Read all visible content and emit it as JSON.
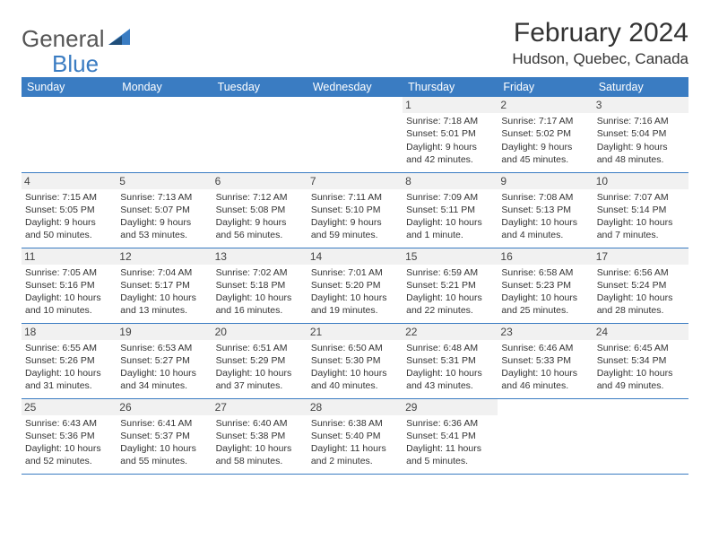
{
  "logo": {
    "general": "General",
    "blue": "Blue",
    "accent_color": "#3a7cc2",
    "text_color": "#555555"
  },
  "title": "February 2024",
  "location": "Hudson, Quebec, Canada",
  "header_bg": "#3a7cc2",
  "header_fg": "#ffffff",
  "border_color": "#3a7cc2",
  "daynum_bg": "#f1f1f1",
  "weekdays": [
    "Sunday",
    "Monday",
    "Tuesday",
    "Wednesday",
    "Thursday",
    "Friday",
    "Saturday"
  ],
  "weeks": [
    [
      null,
      null,
      null,
      null,
      {
        "day": "1",
        "sunrise": "Sunrise: 7:18 AM",
        "sunset": "Sunset: 5:01 PM",
        "daylight": "Daylight: 9 hours and 42 minutes."
      },
      {
        "day": "2",
        "sunrise": "Sunrise: 7:17 AM",
        "sunset": "Sunset: 5:02 PM",
        "daylight": "Daylight: 9 hours and 45 minutes."
      },
      {
        "day": "3",
        "sunrise": "Sunrise: 7:16 AM",
        "sunset": "Sunset: 5:04 PM",
        "daylight": "Daylight: 9 hours and 48 minutes."
      }
    ],
    [
      {
        "day": "4",
        "sunrise": "Sunrise: 7:15 AM",
        "sunset": "Sunset: 5:05 PM",
        "daylight": "Daylight: 9 hours and 50 minutes."
      },
      {
        "day": "5",
        "sunrise": "Sunrise: 7:13 AM",
        "sunset": "Sunset: 5:07 PM",
        "daylight": "Daylight: 9 hours and 53 minutes."
      },
      {
        "day": "6",
        "sunrise": "Sunrise: 7:12 AM",
        "sunset": "Sunset: 5:08 PM",
        "daylight": "Daylight: 9 hours and 56 minutes."
      },
      {
        "day": "7",
        "sunrise": "Sunrise: 7:11 AM",
        "sunset": "Sunset: 5:10 PM",
        "daylight": "Daylight: 9 hours and 59 minutes."
      },
      {
        "day": "8",
        "sunrise": "Sunrise: 7:09 AM",
        "sunset": "Sunset: 5:11 PM",
        "daylight": "Daylight: 10 hours and 1 minute."
      },
      {
        "day": "9",
        "sunrise": "Sunrise: 7:08 AM",
        "sunset": "Sunset: 5:13 PM",
        "daylight": "Daylight: 10 hours and 4 minutes."
      },
      {
        "day": "10",
        "sunrise": "Sunrise: 7:07 AM",
        "sunset": "Sunset: 5:14 PM",
        "daylight": "Daylight: 10 hours and 7 minutes."
      }
    ],
    [
      {
        "day": "11",
        "sunrise": "Sunrise: 7:05 AM",
        "sunset": "Sunset: 5:16 PM",
        "daylight": "Daylight: 10 hours and 10 minutes."
      },
      {
        "day": "12",
        "sunrise": "Sunrise: 7:04 AM",
        "sunset": "Sunset: 5:17 PM",
        "daylight": "Daylight: 10 hours and 13 minutes."
      },
      {
        "day": "13",
        "sunrise": "Sunrise: 7:02 AM",
        "sunset": "Sunset: 5:18 PM",
        "daylight": "Daylight: 10 hours and 16 minutes."
      },
      {
        "day": "14",
        "sunrise": "Sunrise: 7:01 AM",
        "sunset": "Sunset: 5:20 PM",
        "daylight": "Daylight: 10 hours and 19 minutes."
      },
      {
        "day": "15",
        "sunrise": "Sunrise: 6:59 AM",
        "sunset": "Sunset: 5:21 PM",
        "daylight": "Daylight: 10 hours and 22 minutes."
      },
      {
        "day": "16",
        "sunrise": "Sunrise: 6:58 AM",
        "sunset": "Sunset: 5:23 PM",
        "daylight": "Daylight: 10 hours and 25 minutes."
      },
      {
        "day": "17",
        "sunrise": "Sunrise: 6:56 AM",
        "sunset": "Sunset: 5:24 PM",
        "daylight": "Daylight: 10 hours and 28 minutes."
      }
    ],
    [
      {
        "day": "18",
        "sunrise": "Sunrise: 6:55 AM",
        "sunset": "Sunset: 5:26 PM",
        "daylight": "Daylight: 10 hours and 31 minutes."
      },
      {
        "day": "19",
        "sunrise": "Sunrise: 6:53 AM",
        "sunset": "Sunset: 5:27 PM",
        "daylight": "Daylight: 10 hours and 34 minutes."
      },
      {
        "day": "20",
        "sunrise": "Sunrise: 6:51 AM",
        "sunset": "Sunset: 5:29 PM",
        "daylight": "Daylight: 10 hours and 37 minutes."
      },
      {
        "day": "21",
        "sunrise": "Sunrise: 6:50 AM",
        "sunset": "Sunset: 5:30 PM",
        "daylight": "Daylight: 10 hours and 40 minutes."
      },
      {
        "day": "22",
        "sunrise": "Sunrise: 6:48 AM",
        "sunset": "Sunset: 5:31 PM",
        "daylight": "Daylight: 10 hours and 43 minutes."
      },
      {
        "day": "23",
        "sunrise": "Sunrise: 6:46 AM",
        "sunset": "Sunset: 5:33 PM",
        "daylight": "Daylight: 10 hours and 46 minutes."
      },
      {
        "day": "24",
        "sunrise": "Sunrise: 6:45 AM",
        "sunset": "Sunset: 5:34 PM",
        "daylight": "Daylight: 10 hours and 49 minutes."
      }
    ],
    [
      {
        "day": "25",
        "sunrise": "Sunrise: 6:43 AM",
        "sunset": "Sunset: 5:36 PM",
        "daylight": "Daylight: 10 hours and 52 minutes."
      },
      {
        "day": "26",
        "sunrise": "Sunrise: 6:41 AM",
        "sunset": "Sunset: 5:37 PM",
        "daylight": "Daylight: 10 hours and 55 minutes."
      },
      {
        "day": "27",
        "sunrise": "Sunrise: 6:40 AM",
        "sunset": "Sunset: 5:38 PM",
        "daylight": "Daylight: 10 hours and 58 minutes."
      },
      {
        "day": "28",
        "sunrise": "Sunrise: 6:38 AM",
        "sunset": "Sunset: 5:40 PM",
        "daylight": "Daylight: 11 hours and 2 minutes."
      },
      {
        "day": "29",
        "sunrise": "Sunrise: 6:36 AM",
        "sunset": "Sunset: 5:41 PM",
        "daylight": "Daylight: 11 hours and 5 minutes."
      },
      null,
      null
    ]
  ]
}
